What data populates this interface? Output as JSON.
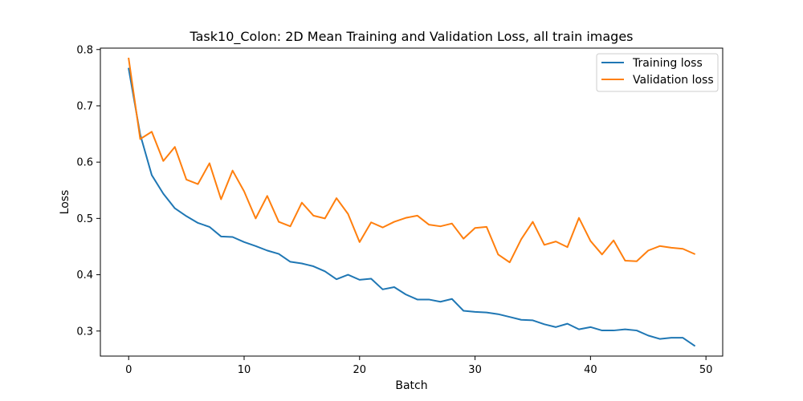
{
  "chart_data": {
    "type": "line",
    "title": "Task10_Colon: 2D Mean Training and Validation Loss, all train images",
    "xlabel": "Batch",
    "ylabel": "Loss",
    "xlim": [
      -2.45,
      51.45
    ],
    "ylim": [
      0.2555,
      0.8025
    ],
    "xticks": [
      "0",
      "10",
      "20",
      "30",
      "40",
      "50"
    ],
    "yticks": [
      "0.3",
      "0.4",
      "0.5",
      "0.6",
      "0.7",
      "0.8"
    ],
    "xtick_values": [
      0,
      10,
      20,
      30,
      40,
      50
    ],
    "ytick_values": [
      0.3,
      0.4,
      0.5,
      0.6,
      0.7,
      0.8
    ],
    "grid": false,
    "legend_position": "top-right",
    "x": [
      0,
      1,
      2,
      3,
      4,
      5,
      6,
      7,
      8,
      9,
      10,
      11,
      12,
      13,
      14,
      15,
      16,
      17,
      18,
      19,
      20,
      21,
      22,
      23,
      24,
      25,
      26,
      27,
      28,
      29,
      30,
      31,
      32,
      33,
      34,
      35,
      36,
      37,
      38,
      39,
      40,
      41,
      42,
      43,
      44,
      45,
      46,
      47,
      48,
      49
    ],
    "series": [
      {
        "name": "Training loss",
        "color": "#1f77b4",
        "values": [
          0.766,
          0.649,
          0.577,
          0.544,
          0.518,
          0.504,
          0.492,
          0.485,
          0.468,
          0.467,
          0.458,
          0.451,
          0.443,
          0.437,
          0.423,
          0.42,
          0.415,
          0.406,
          0.392,
          0.4,
          0.391,
          0.393,
          0.374,
          0.378,
          0.365,
          0.356,
          0.356,
          0.352,
          0.357,
          0.336,
          0.334,
          0.333,
          0.33,
          0.325,
          0.32,
          0.319,
          0.312,
          0.307,
          0.313,
          0.303,
          0.307,
          0.301,
          0.301,
          0.303,
          0.301,
          0.292,
          0.286,
          0.288,
          0.288,
          0.274
        ]
      },
      {
        "name": "Validation loss",
        "color": "#ff7f0e",
        "values": [
          0.784,
          0.641,
          0.654,
          0.602,
          0.627,
          0.569,
          0.561,
          0.598,
          0.534,
          0.585,
          0.548,
          0.5,
          0.54,
          0.494,
          0.486,
          0.528,
          0.505,
          0.5,
          0.536,
          0.508,
          0.458,
          0.493,
          0.484,
          0.494,
          0.501,
          0.505,
          0.489,
          0.486,
          0.491,
          0.464,
          0.483,
          0.485,
          0.436,
          0.422,
          0.463,
          0.494,
          0.453,
          0.459,
          0.449,
          0.501,
          0.46,
          0.436,
          0.461,
          0.425,
          0.424,
          0.443,
          0.451,
          0.448,
          0.446,
          0.437
        ]
      }
    ]
  }
}
